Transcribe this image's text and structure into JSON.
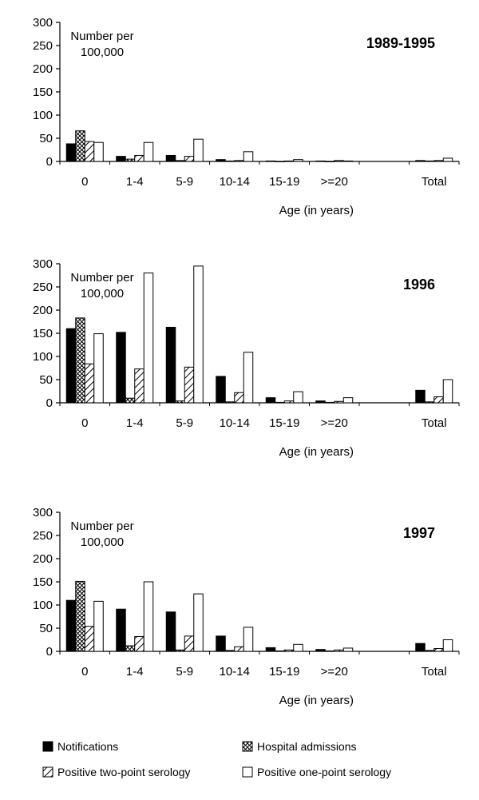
{
  "legend": {
    "items": [
      {
        "name": "Notifications",
        "pattern": "solid"
      },
      {
        "name": "Hospital admissions",
        "pattern": "crosshatch"
      },
      {
        "name": "Positive two-point serology",
        "pattern": "diagonal"
      },
      {
        "name": "Positive one-point serology",
        "pattern": "empty"
      }
    ]
  },
  "chart_data": [
    {
      "type": "bar",
      "title": "1989-1995",
      "ylabel": "Number per\n100,000",
      "xlabel": "Age (in years)",
      "ylim": [
        0,
        300
      ],
      "yticks": [
        0,
        50,
        100,
        150,
        200,
        250,
        300
      ],
      "categories": [
        "0",
        "1-4",
        "5-9",
        "10-14",
        "15-19",
        ">=20",
        "",
        "Total"
      ],
      "series": [
        {
          "name": "Notifications",
          "values": [
            38,
            11,
            13,
            4,
            1,
            1,
            null,
            2
          ]
        },
        {
          "name": "Hospital admissions",
          "values": [
            66,
            5,
            2,
            1,
            0,
            0,
            null,
            1
          ]
        },
        {
          "name": "Positive two-point serology",
          "values": [
            43,
            13,
            11,
            2,
            1,
            2,
            null,
            2
          ]
        },
        {
          "name": "Positive one-point serology",
          "values": [
            41,
            41,
            48,
            21,
            4,
            1,
            null,
            7
          ]
        }
      ]
    },
    {
      "type": "bar",
      "title": "1996",
      "ylabel": "Number per\n100,000",
      "xlabel": "Age (in years)",
      "ylim": [
        0,
        300
      ],
      "yticks": [
        0,
        50,
        100,
        150,
        200,
        250,
        300
      ],
      "categories": [
        "0",
        "1-4",
        "5-9",
        "10-14",
        "15-19",
        ">=20",
        "",
        "Total"
      ],
      "series": [
        {
          "name": "Notifications",
          "values": [
            160,
            152,
            163,
            57,
            11,
            4,
            null,
            27
          ]
        },
        {
          "name": "Hospital admissions",
          "values": [
            183,
            10,
            4,
            2,
            1,
            1,
            null,
            2
          ]
        },
        {
          "name": "Positive two-point serology",
          "values": [
            84,
            73,
            77,
            22,
            4,
            3,
            null,
            13
          ]
        },
        {
          "name": "Positive one-point serology",
          "values": [
            149,
            280,
            295,
            109,
            24,
            11,
            null,
            50
          ]
        }
      ]
    },
    {
      "type": "bar",
      "title": "1997",
      "ylabel": "Number per\n100,000",
      "xlabel": "Age (in years)",
      "ylim": [
        0,
        300
      ],
      "yticks": [
        0,
        50,
        100,
        150,
        200,
        250,
        300
      ],
      "categories": [
        "0",
        "1-4",
        "5-9",
        "10-14",
        "15-19",
        ">=20",
        "",
        "Total"
      ],
      "series": [
        {
          "name": "Notifications",
          "values": [
            110,
            91,
            85,
            33,
            8,
            4,
            null,
            17
          ]
        },
        {
          "name": "Hospital admissions",
          "values": [
            151,
            12,
            3,
            2,
            1,
            1,
            null,
            2
          ]
        },
        {
          "name": "Positive two-point serology",
          "values": [
            54,
            32,
            33,
            10,
            3,
            3,
            null,
            6
          ]
        },
        {
          "name": "Positive one-point serology",
          "values": [
            108,
            150,
            124,
            52,
            15,
            7,
            null,
            25
          ]
        }
      ]
    }
  ]
}
